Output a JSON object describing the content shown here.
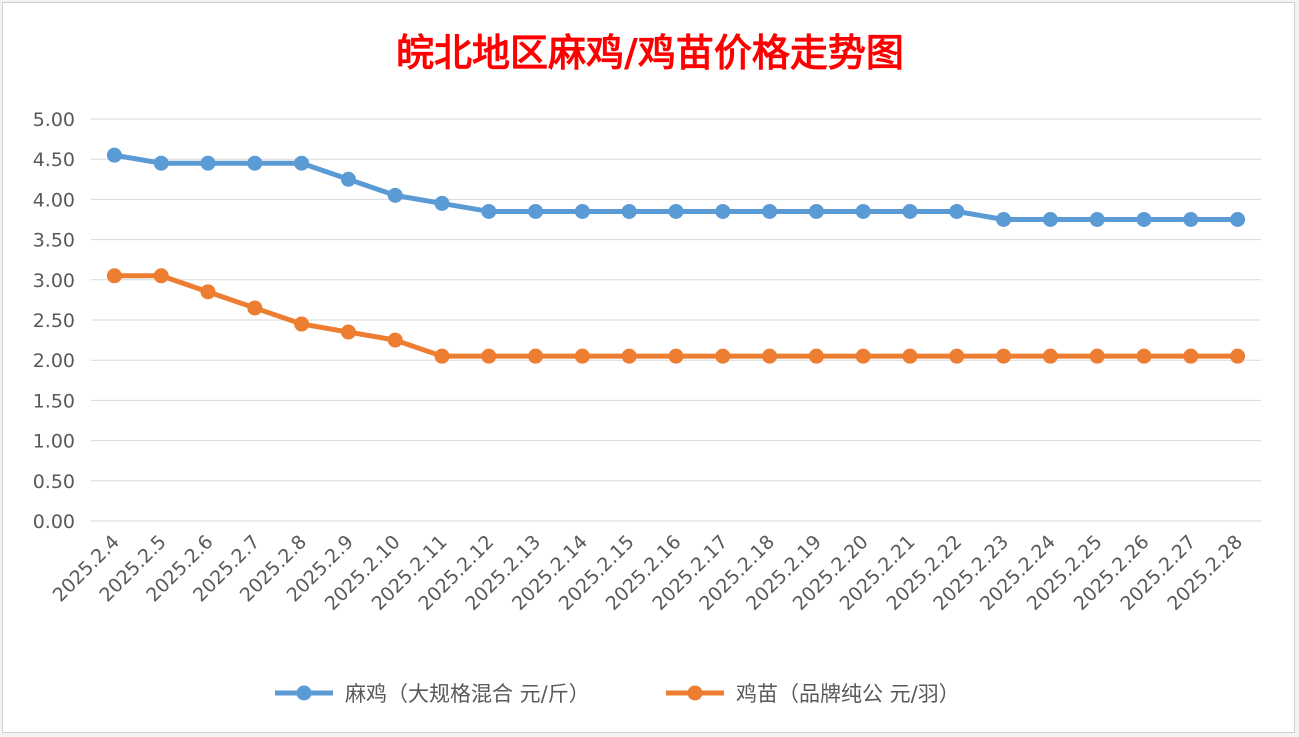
{
  "chart_data": {
    "type": "line",
    "title": "皖北地区麻鸡/鸡苗价格走势图",
    "title_color": "#ff0000",
    "categories": [
      "2025.2.4",
      "2025.2.5",
      "2025.2.6",
      "2025.2.7",
      "2025.2.8",
      "2025.2.9",
      "2025.2.10",
      "2025.2.11",
      "2025.2.12",
      "2025.2.13",
      "2025.2.14",
      "2025.2.15",
      "2025.2.16",
      "2025.2.17",
      "2025.2.18",
      "2025.2.19",
      "2025.2.20",
      "2025.2.21",
      "2025.2.22",
      "2025.2.23",
      "2025.2.24",
      "2025.2.25",
      "2025.2.26",
      "2025.2.27",
      "2025.2.28"
    ],
    "series": [
      {
        "name": "麻鸡（大规格混合 元/斤）",
        "color": "#5b9bd5",
        "values": [
          4.55,
          4.45,
          4.45,
          4.45,
          4.45,
          4.25,
          4.05,
          3.95,
          3.85,
          3.85,
          3.85,
          3.85,
          3.85,
          3.85,
          3.85,
          3.85,
          3.85,
          3.85,
          3.85,
          3.75,
          3.75,
          3.75,
          3.75,
          3.75,
          3.75
        ]
      },
      {
        "name": "鸡苗（品牌纯公 元/羽）",
        "color": "#ed7d31",
        "values": [
          3.05,
          3.05,
          2.85,
          2.65,
          2.45,
          2.35,
          2.25,
          2.05,
          2.05,
          2.05,
          2.05,
          2.05,
          2.05,
          2.05,
          2.05,
          2.05,
          2.05,
          2.05,
          2.05,
          2.05,
          2.05,
          2.05,
          2.05,
          2.05,
          2.05
        ]
      }
    ],
    "y_ticks": [
      "0.00",
      "0.50",
      "1.00",
      "1.50",
      "2.00",
      "2.50",
      "3.00",
      "3.50",
      "4.00",
      "4.50",
      "5.00"
    ],
    "ylim": [
      0,
      5
    ],
    "xlabel": "",
    "ylabel": "",
    "grid": true,
    "legend_position": "bottom"
  }
}
